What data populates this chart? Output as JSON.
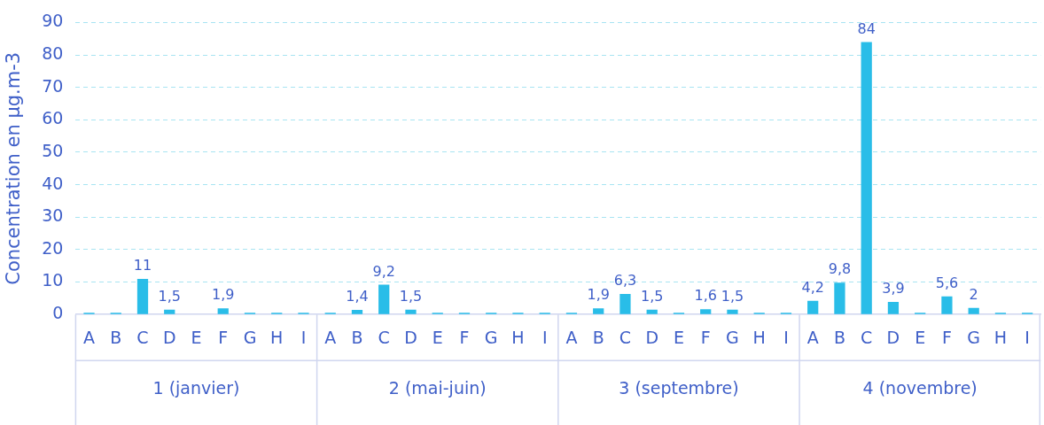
{
  "chart_data": {
    "type": "bar",
    "ylabel": "Concentration en µg.m-3",
    "categories": [
      "A",
      "B",
      "C",
      "D",
      "E",
      "F",
      "G",
      "H",
      "I",
      "A",
      "B",
      "C",
      "D",
      "E",
      "F",
      "G",
      "H",
      "I",
      "A",
      "B",
      "C",
      "D",
      "E",
      "F",
      "G",
      "H",
      "I",
      "A",
      "B",
      "C",
      "D",
      "E",
      "F",
      "G",
      "H",
      "I"
    ],
    "values": [
      0.5,
      0.5,
      11,
      1.5,
      null,
      1.9,
      0.5,
      0.5,
      0.5,
      0.5,
      1.4,
      9.2,
      1.5,
      0.5,
      0.5,
      0.5,
      0.5,
      0.5,
      0.5,
      1.9,
      6.3,
      1.5,
      0.5,
      1.6,
      1.5,
      0.5,
      0.5,
      4.2,
      9.8,
      84,
      3.9,
      0.5,
      5.6,
      2,
      0.5,
      0.5
    ],
    "value_labels": [
      null,
      null,
      "11",
      "1,5",
      null,
      "1,9",
      null,
      null,
      null,
      null,
      "1,4",
      "9,2",
      "1,5",
      null,
      null,
      null,
      null,
      null,
      null,
      "1,9",
      "6,3",
      "1,5",
      null,
      "1,6",
      "1,5",
      null,
      null,
      "4,2",
      "9,8",
      "84",
      "3,9",
      null,
      "5,6",
      "2",
      null,
      null
    ],
    "color": "#29bde8",
    "ylim": [
      0,
      90
    ],
    "yticks": [
      0,
      10,
      20,
      30,
      40,
      50,
      60,
      70,
      80,
      90
    ],
    "grid": "y",
    "legend": false,
    "annotations": [
      "1 (janvier)",
      "2 (mai-juin)",
      "3 (septembre)",
      "4 (novembre)"
    ]
  }
}
